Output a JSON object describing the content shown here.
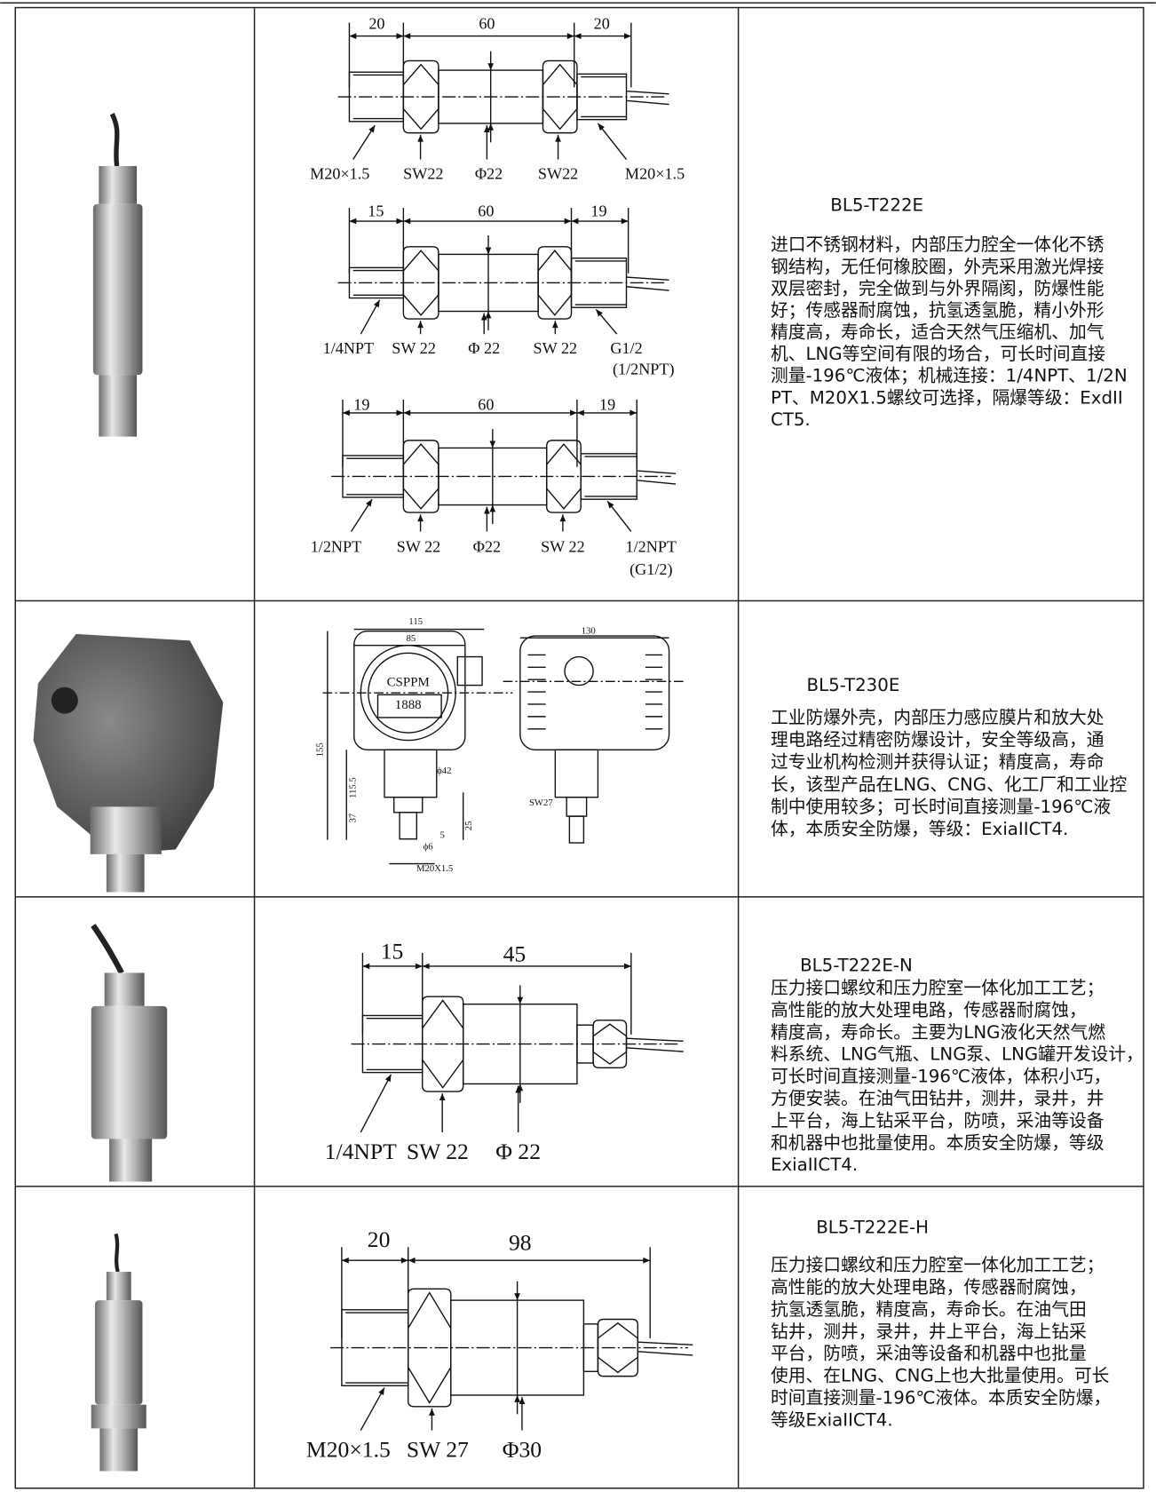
{
  "rows": [
    {
      "model": "BL5-T222E",
      "description": [
        "进口不锈钢材料，内部压力腔全一体化不锈",
        "钢结构，无任何橡胶圈，外壳采用激光焊接",
        "双层密封，完全做到与外界隔阂，防爆性能",
        "好；传感器耐腐蚀，抗氢透氢脆，精小外形",
        "精度高，寿命长，适合天然气压缩机、加气",
        "机、LNG等空间有限的场合，可长时间直接",
        "测量-196℃液体；机械连接：1/4NPT、1/2N",
        "PT、M20X1.5螺纹可选择，隔爆等级：ExdII",
        "CT5."
      ],
      "drawing_labels": [
        "20",
        "60",
        "20",
        "M20×1.5",
        "SW22",
        "Φ22",
        "SW22",
        "M20×1.5",
        "15",
        "60",
        "19",
        "1/4NPT",
        "SW 22",
        "Φ 22",
        "SW 22",
        "G1/2",
        "(1/2NPT)",
        "19",
        "60",
        "19",
        "1/2NPT",
        "SW 22",
        "Φ22",
        "SW 22",
        "1/2NPT",
        "(G1/2)"
      ]
    },
    {
      "model": "BL5-T230E",
      "description": [
        "工业防爆外壳，内部压力感应膜片和放大处",
        "理电路经过精密防爆设计，安全等级高，通",
        "过专业机构检测并获得认证；精度高，寿命",
        "长，该型产品在LNG、CNG、化工厂和工业控",
        "制中使用较多；可长时间直接测量-196℃液",
        "体，本质安全防爆，等级：ExiaIICT4."
      ],
      "drawing_labels": [
        "115",
        "85",
        "130",
        "CSPPM",
        "1888",
        "155",
        "115.5",
        "37",
        "ϕ42",
        "25",
        "5",
        "ϕ6",
        "M20X1.5",
        "SW27"
      ]
    },
    {
      "model": "BL5-T222E-N",
      "description": [
        "压力接口螺纹和压力腔室一体化加工工艺；",
        "高性能的放大处理电路，传感器耐腐蚀，",
        "精度高，寿命长。主要为LNG液化天然气燃",
        "料系统、LNG气瓶、LNG泵、LNG罐开发设计，",
        "可长时间直接测量-196℃液体，体积小巧，",
        "方便安装。在油气田钻井，测井，录井，井",
        "上平台，海上钻采平台，防喷，采油等设备",
        "和机器中也批量使用。本质安全防爆，等级",
        "ExiaIICT4."
      ],
      "drawing_labels": [
        "15",
        "45",
        "1/4NPT",
        "SW 22",
        "Φ 22"
      ]
    },
    {
      "model": "BL5-T222E-H",
      "description": [
        "压力接口螺纹和压力腔室一体化加工工艺；",
        "高性能的放大处理电路，传感器耐腐蚀，",
        "抗氢透氢脆，精度高，寿命长。在油气田",
        "钻井，测井，录井，井上平台，海上钻采",
        "平台，防喷，采油等设备和机器中也批量",
        "使用、在LNG、CNG上也大批量使用。可长",
        "时间直接测量-196℃液体。本质安全防爆，",
        "等级ExiaIICT4."
      ],
      "drawing_labels": [
        "20",
        "98",
        "M20×1.5",
        "SW 27",
        "Φ30"
      ]
    }
  ]
}
